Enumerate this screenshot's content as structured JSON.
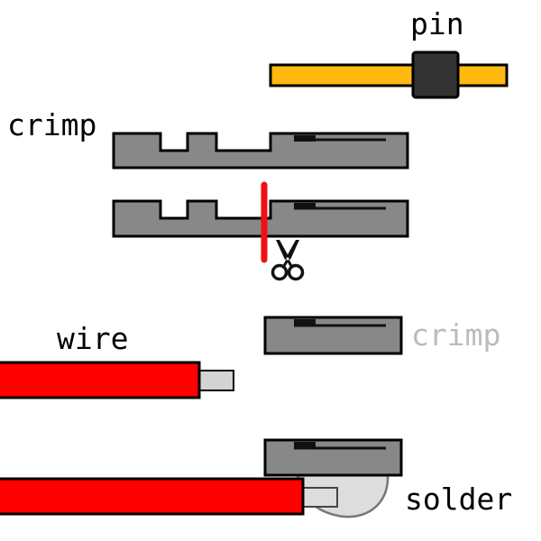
{
  "labels": {
    "pin": "pin",
    "crimp": "crimp",
    "crimp_faded": "crimp",
    "wire": "wire",
    "solder": "solder"
  },
  "icons": {
    "cut": "scissors-icon"
  },
  "colors": {
    "pin_body": "#FFB90F",
    "pin_collar": "#333333",
    "crimp_metal": "#888888",
    "crimp_slot": "#111111",
    "wire_insulation": "#FF0000",
    "wire_conductor": "#D3D3D3",
    "solder": "#DDDDDD",
    "cut_line": "#EE1111",
    "faded_text": "#BBBBBB",
    "text": "#000000"
  }
}
